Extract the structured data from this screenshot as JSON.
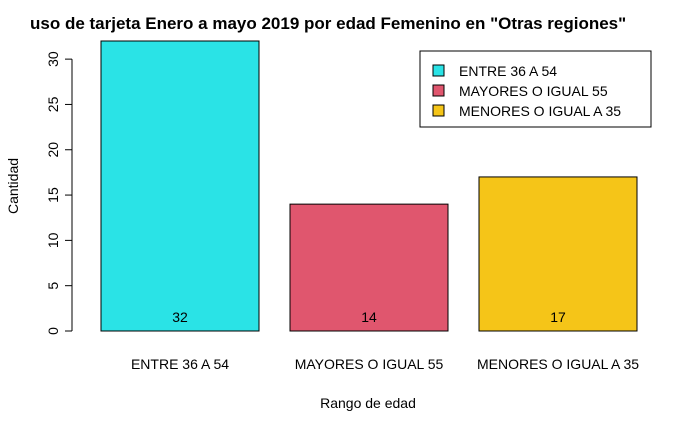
{
  "chart_data": {
    "type": "bar",
    "title": "uso de tarjeta Enero a mayo 2019 por edad Femenino en \"Otras regiones\"",
    "xlabel": "Rango de edad",
    "ylabel": "Cantidad",
    "categories": [
      "ENTRE 36 A 54",
      "MAYORES O IGUAL 55",
      "MENORES O IGUAL A 35"
    ],
    "values": [
      32,
      14,
      17
    ],
    "data_labels": [
      "32",
      "14",
      "17"
    ],
    "colors": [
      "#2AE3E6",
      "#E0566E",
      "#F5C518"
    ],
    "ylim": [
      0,
      32
    ],
    "yticks": [
      0,
      5,
      10,
      15,
      20,
      25,
      30
    ],
    "ytick_labels": [
      "0",
      "5",
      "10",
      "15",
      "20",
      "25",
      "30"
    ],
    "grid": false,
    "legend": {
      "placement": "top-right",
      "entries": [
        "ENTRE 36 A 54",
        "MAYORES O IGUAL 55",
        "MENORES O IGUAL A 35"
      ]
    }
  }
}
